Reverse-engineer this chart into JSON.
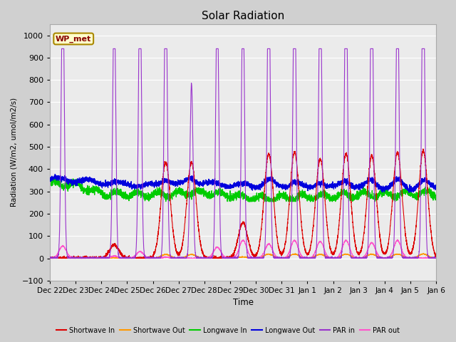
{
  "title": "Solar Radiation",
  "ylabel": "Radiation (W/m2, umol/m2/s)",
  "xlabel": "Time",
  "ylim": [
    -100,
    1050
  ],
  "yticks": [
    -100,
    0,
    100,
    200,
    300,
    400,
    500,
    600,
    700,
    800,
    900,
    1000
  ],
  "fig_bg": "#d0d0d0",
  "plot_bg": "#ebebeb",
  "label_box": "WP_met",
  "label_box_color": "#ffffcc",
  "label_box_edge": "#aa8800",
  "colors": {
    "shortwave_in": "#dd0000",
    "shortwave_out": "#ff9900",
    "longwave_in": "#00cc00",
    "longwave_out": "#0000dd",
    "par_in": "#9933cc",
    "par_out": "#ff55cc"
  },
  "legend": [
    {
      "label": "Shortwave In",
      "color": "#dd0000"
    },
    {
      "label": "Shortwave Out",
      "color": "#ff9900"
    },
    {
      "label": "Longwave In",
      "color": "#00cc00"
    },
    {
      "label": "Longwave Out",
      "color": "#0000dd"
    },
    {
      "label": "PAR in",
      "color": "#9933cc"
    },
    {
      "label": "PAR out",
      "color": "#ff55cc"
    }
  ],
  "n_days": 15,
  "pts_per_day": 288
}
